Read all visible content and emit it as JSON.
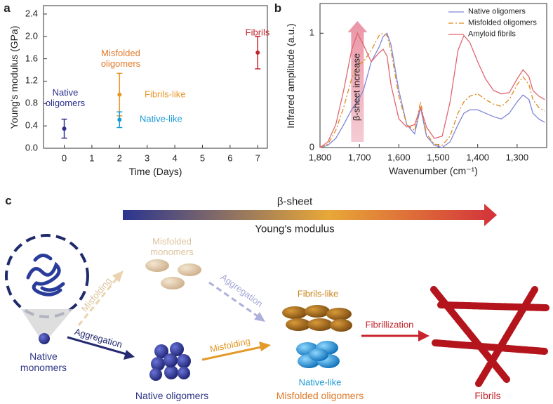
{
  "chart_data": [
    {
      "type": "scatter",
      "label": "a",
      "x_label": "Time (Days)",
      "y_label": "Young's modulus (GPa)",
      "xlim": [
        -0.75,
        7.35
      ],
      "xticks": [
        0,
        1,
        2,
        3,
        4,
        5,
        6,
        7
      ],
      "ylim": [
        0,
        2.55
      ],
      "yticks": [
        {
          "value": 0,
          "label": "0.0"
        },
        0.4,
        0.8,
        1.2,
        1.6,
        {
          "value": 2,
          "label": "2.0"
        },
        2.4
      ],
      "series": [
        {
          "name": "Native oligomers",
          "color": "#2b2f8f",
          "x": [
            0
          ],
          "values": [
            0.35
          ],
          "errors": [
            0.17
          ]
        },
        {
          "name": "Fibrils-like",
          "color": "#e8962a",
          "x": [
            2
          ],
          "values": [
            0.96
          ],
          "errors": [
            0.38
          ]
        },
        {
          "name": "Native-like",
          "color": "#1a9bd7",
          "x": [
            2
          ],
          "values": [
            0.51
          ],
          "errors": [
            0.14
          ]
        },
        {
          "name": "Fibrils",
          "color": "#c0262d",
          "x": [
            7
          ],
          "values": [
            1.71
          ],
          "errors": [
            0.29
          ]
        }
      ],
      "annotations": [
        {
          "text": "Misfolded oligomers",
          "color": "#e07a2a"
        }
      ]
    },
    {
      "type": "line",
      "label": "b",
      "x_label": "Wavenumber (cm⁻¹)",
      "y_label": "Infrared amplitude (a.u.)",
      "xlim": [
        1800,
        1225
      ],
      "xticks": [
        {
          "value": 1800,
          "label": "1,800"
        },
        {
          "value": 1700,
          "label": "1,700"
        },
        {
          "value": 1600,
          "label": "1,600"
        },
        {
          "value": 1500,
          "label": "1,500"
        },
        {
          "value": 1400,
          "label": "1,400"
        },
        {
          "value": 1300,
          "label": "1,300"
        }
      ],
      "ylim": [
        0,
        1.26
      ],
      "yticks": [
        0,
        1
      ],
      "legend": "top-right",
      "x": [
        1800,
        1780,
        1760,
        1740,
        1720,
        1705,
        1690,
        1670,
        1650,
        1640,
        1630,
        1620,
        1600,
        1580,
        1560,
        1545,
        1530,
        1510,
        1490,
        1470,
        1450,
        1435,
        1420,
        1400,
        1380,
        1360,
        1340,
        1320,
        1300,
        1285,
        1270,
        1260,
        1245,
        1230
      ],
      "series": [
        {
          "name": "Native oligomers",
          "color": "#7f86d6",
          "values": [
            0.0,
            0.02,
            0.08,
            0.2,
            0.33,
            0.4,
            0.5,
            0.75,
            0.88,
            0.97,
            1.0,
            0.9,
            0.5,
            0.2,
            0.12,
            0.35,
            0.1,
            0.02,
            0.0,
            0.05,
            0.2,
            0.3,
            0.33,
            0.33,
            0.3,
            0.27,
            0.25,
            0.3,
            0.4,
            0.46,
            0.42,
            0.3,
            0.25,
            0.22
          ]
        },
        {
          "name": "Misfolded oligomers",
          "color": "#e08a1e",
          "dash": "dashdot",
          "values": [
            0.0,
            0.03,
            0.15,
            0.35,
            0.6,
            0.72,
            0.75,
            0.85,
            0.98,
            1.0,
            0.98,
            0.85,
            0.45,
            0.2,
            0.15,
            0.4,
            0.12,
            0.03,
            0.02,
            0.1,
            0.3,
            0.4,
            0.45,
            0.47,
            0.42,
            0.38,
            0.36,
            0.42,
            0.55,
            0.62,
            0.55,
            0.42,
            0.35,
            0.32
          ]
        },
        {
          "name": "Amyloid fibrils",
          "color": "#e0666e",
          "values": [
            0.0,
            0.05,
            0.2,
            0.5,
            0.85,
            1.0,
            0.9,
            0.75,
            0.83,
            0.86,
            0.8,
            0.55,
            0.25,
            0.18,
            0.2,
            0.35,
            0.18,
            0.08,
            0.1,
            0.4,
            0.85,
            0.98,
            0.92,
            0.75,
            0.6,
            0.5,
            0.47,
            0.48,
            0.6,
            0.68,
            0.62,
            0.5,
            0.45,
            0.42
          ]
        }
      ],
      "annotations": [
        {
          "text": "β-sheet increase",
          "x": 1705
        }
      ]
    }
  ],
  "diagram": {
    "label": "c",
    "arrow_top": "β-sheet",
    "arrow_bottom": "Young's modulus",
    "misfolded_monomers": "Misfolded monomers",
    "misfolding_dashed": "Misfolding",
    "aggregation_dashed": "Aggregation",
    "native_monomers": "Native monomers",
    "aggregation": "Aggregation",
    "misfolding": "Misfolding",
    "fibrils_like": "Fibrils-like",
    "native_like": "Native-like",
    "fibrillization": "Fibrillization",
    "native_oligomers": "Native oligomers",
    "misfolded_oligomers": "Misfolded oligomers",
    "fibrils": "Fibrils"
  }
}
